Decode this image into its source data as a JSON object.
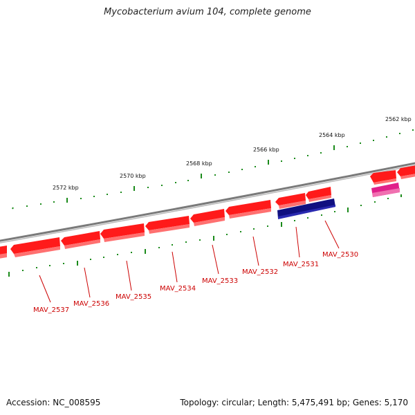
{
  "header": {
    "title": "Mycobacterium avium 104, complete genome"
  },
  "footer": {
    "accession": "Accession: NC_008595",
    "summary": "Topology: circular; Length: 5,475,491 bp; Genes: 5,170"
  },
  "scale_labels": [
    "2562 kbp",
    "2564 kbp",
    "2566 kbp",
    "2568 kbp",
    "2570 kbp",
    "2572 kbp"
  ],
  "genes": [
    {
      "name": "MAV_2537"
    },
    {
      "name": "MAV_2536"
    },
    {
      "name": "MAV_2535"
    },
    {
      "name": "MAV_2534"
    },
    {
      "name": "MAV_2533"
    },
    {
      "name": "MAV_2532"
    },
    {
      "name": "MAV_2531"
    },
    {
      "name": "MAV_2530"
    }
  ],
  "colors": {
    "feature_red": "#ff1a1a",
    "feature_navy": "#101080",
    "feature_magenta": "#e0208a",
    "label_red": "#cc0000",
    "tick_green": "#1a8a1a",
    "backbone": "#808080"
  }
}
